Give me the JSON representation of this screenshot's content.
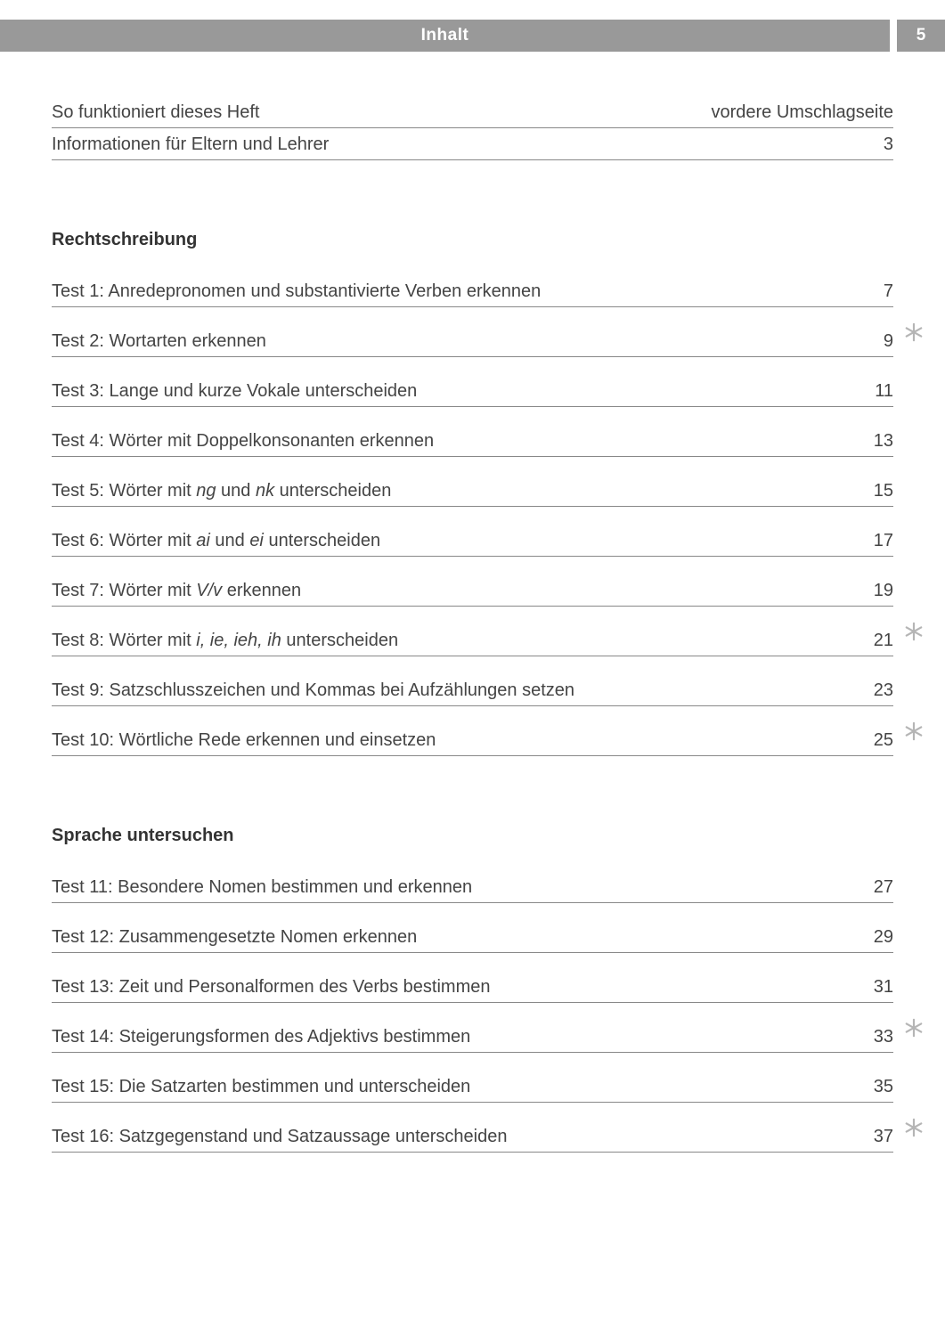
{
  "header": {
    "title": "Inhalt",
    "page_number": "5",
    "bar_color": "#999999",
    "text_color": "#ffffff"
  },
  "intro": [
    {
      "title": "So funktioniert dieses Heft",
      "page": "vordere Umschlagseite"
    },
    {
      "title": "Informationen für Eltern und Lehrer",
      "page": "3"
    }
  ],
  "sections": [
    {
      "heading": "Rechtschreibung",
      "items": [
        {
          "title": "Test 1: Anredepronomen und substantivierte Verben erkennen",
          "page": "7",
          "star": false
        },
        {
          "title": "Test 2: Wortarten erkennen",
          "page": "9",
          "star": true
        },
        {
          "title": "Test 3: Lange und kurze Vokale unterscheiden",
          "page": "11",
          "star": false
        },
        {
          "title": "Test 4: Wörter mit Doppelkonsonanten erkennen",
          "page": "13",
          "star": false
        },
        {
          "title_html": "Test 5: Wörter mit <em class='it'>ng</em> und <em class='it'>nk</em> unterscheiden",
          "page": "15",
          "star": false
        },
        {
          "title_html": "Test 6: Wörter mit <em class='it'>ai</em> und <em class='it'>ei</em> unterscheiden",
          "page": "17",
          "star": false
        },
        {
          "title_html": "Test 7: Wörter mit <em class='it'>V/v</em> erkennen",
          "page": "19",
          "star": false
        },
        {
          "title_html": "Test 8: Wörter mit <em class='it'>i, ie, ieh, ih</em> unterscheiden",
          "page": "21",
          "star": true
        },
        {
          "title": "Test 9: Satzschlusszeichen und Kommas bei Aufzählungen setzen",
          "page": "23",
          "star": false
        },
        {
          "title": "Test 10: Wörtliche Rede erkennen und einsetzen",
          "page": "25",
          "star": true
        }
      ]
    },
    {
      "heading": "Sprache untersuchen",
      "items": [
        {
          "title": "Test 11: Besondere Nomen bestimmen und erkennen",
          "page": "27",
          "star": false
        },
        {
          "title": "Test 12: Zusammengesetzte Nomen erkennen",
          "page": "29",
          "star": false
        },
        {
          "title": "Test 13: Zeit und Personalformen des Verbs bestimmen",
          "page": "31",
          "star": false
        },
        {
          "title": "Test 14: Steigerungsformen des Adjektivs bestimmen",
          "page": "33",
          "star": true
        },
        {
          "title": "Test 15: Die Satzarten bestimmen und unterscheiden",
          "page": "35",
          "star": false
        },
        {
          "title": "Test 16: Satzgegenstand und Satzaussage unterscheiden",
          "page": "37",
          "star": true
        }
      ]
    }
  ],
  "style": {
    "body_font_size": 20,
    "heading_font_size": 20,
    "text_color": "#444444",
    "rule_color": "#888888",
    "star_color": "#b5b5b5",
    "background": "#ffffff"
  }
}
